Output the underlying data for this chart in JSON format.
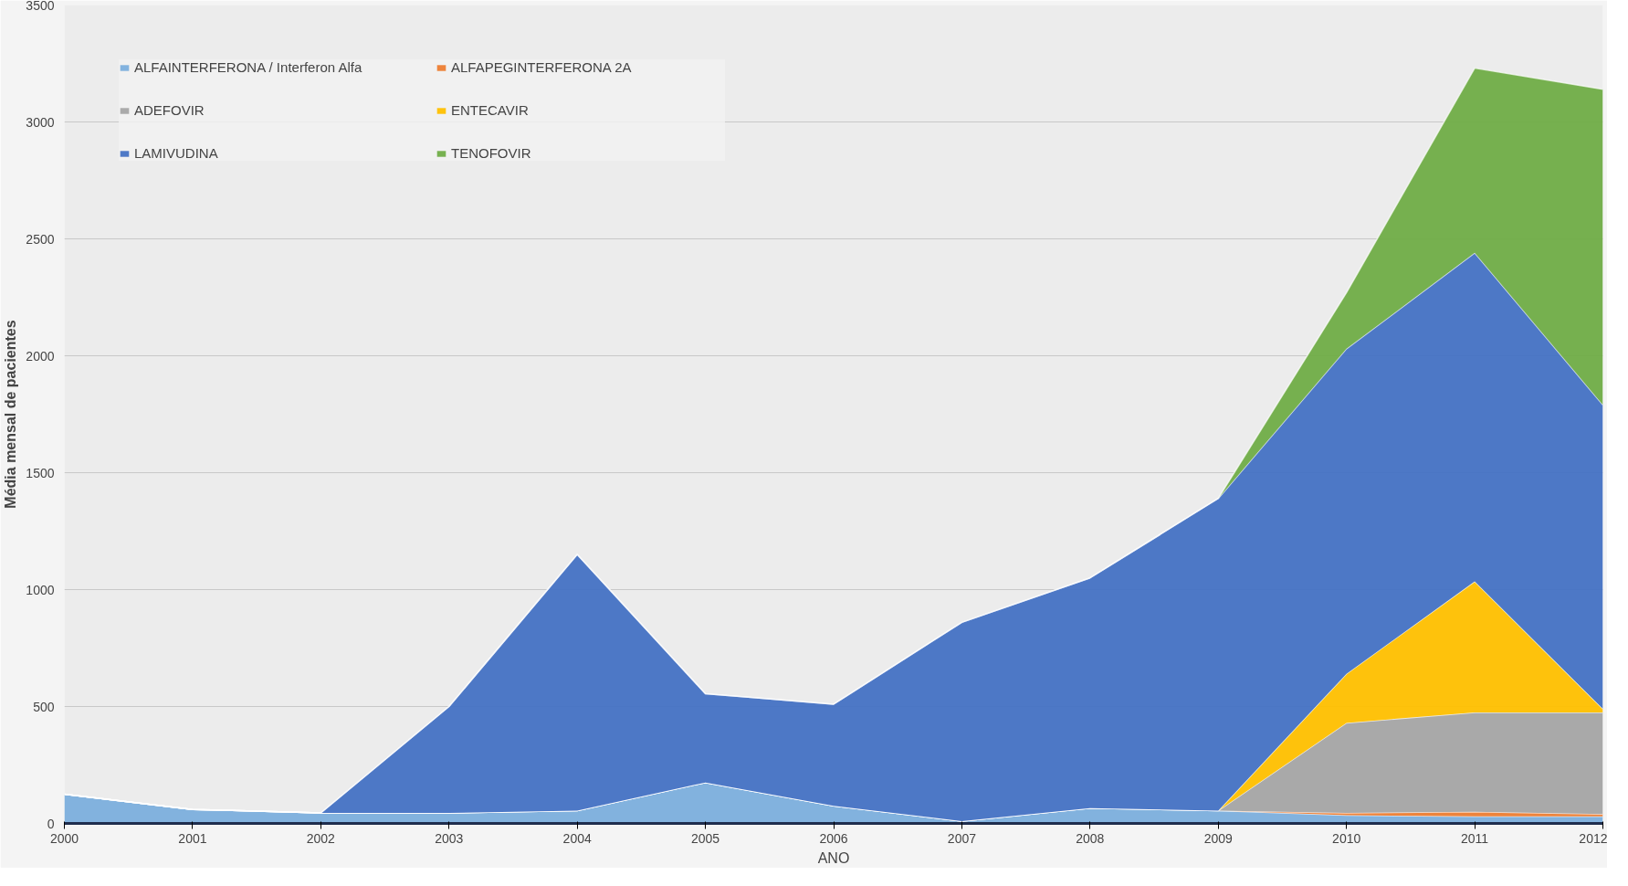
{
  "chart_data": {
    "type": "area",
    "stacked": true,
    "xlabel": "ANO",
    "ylabel": "Média mensal de pacientes",
    "categories": [
      "2000",
      "2001",
      "2002",
      "2003",
      "2004",
      "2005",
      "2006",
      "2007",
      "2008",
      "2009",
      "2010",
      "2011",
      "2012"
    ],
    "series": [
      {
        "name": "ALFAINTERFERONA / Interferon Alfa",
        "color": "#7cafdd",
        "values": [
          125,
          60,
          45,
          45,
          55,
          175,
          75,
          10,
          65,
          55,
          35,
          30,
          30
        ]
      },
      {
        "name": "ALFAPEGINTERFERONA 2A",
        "color": "#ed7d31",
        "values": [
          0,
          0,
          0,
          0,
          0,
          0,
          0,
          0,
          0,
          0,
          10,
          20,
          10
        ]
      },
      {
        "name": "ADEFOVIR",
        "color": "#a5a5a5",
        "values": [
          0,
          0,
          0,
          0,
          0,
          0,
          0,
          0,
          0,
          0,
          385,
          425,
          435
        ]
      },
      {
        "name": "ENTECAVIR",
        "color": "#ffc000",
        "values": [
          0,
          0,
          0,
          0,
          0,
          0,
          0,
          0,
          0,
          0,
          210,
          560,
          15
        ]
      },
      {
        "name": "LAMIVUDINA",
        "color": "#4472c4",
        "values": [
          0,
          0,
          0,
          455,
          1095,
          380,
          435,
          850,
          985,
          1335,
          1390,
          1405,
          1300
        ]
      },
      {
        "name": "TENOFOVIR",
        "color": "#70ad47",
        "values": [
          0,
          0,
          0,
          0,
          0,
          0,
          0,
          0,
          0,
          0,
          240,
          790,
          1350
        ]
      }
    ],
    "ylim": [
      0,
      3500
    ],
    "yticks": [
      0,
      500,
      1000,
      1500,
      2000,
      2500,
      3000,
      3500
    ],
    "grid": "y",
    "legend": "top left"
  }
}
